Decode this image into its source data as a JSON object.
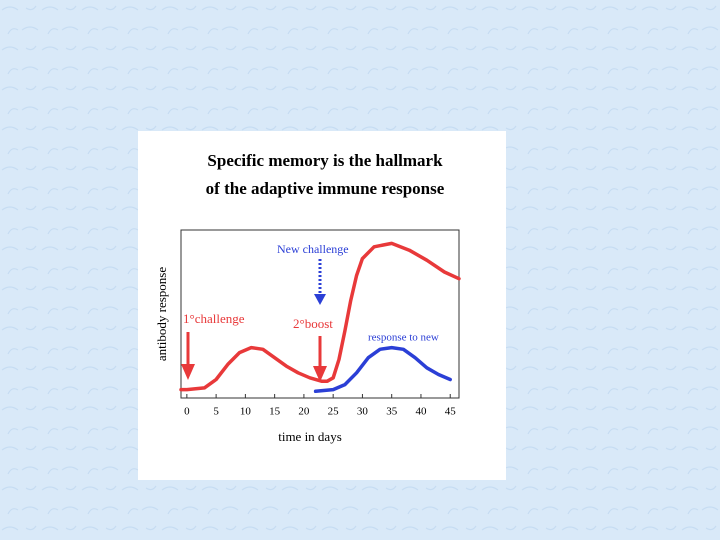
{
  "chart_data": {
    "type": "line",
    "title": [
      "Specific memory is the hallmark",
      "of the adaptive immune response"
    ],
    "xlabel": "time in days",
    "ylabel": "antibody response",
    "xlim": [
      -1,
      46.5
    ],
    "ylim": [
      0,
      100
    ],
    "xticks": [
      0,
      5,
      10,
      15,
      20,
      25,
      30,
      35,
      40,
      45
    ],
    "grid": false,
    "series": [
      {
        "color": "#e8393a",
        "x": [
          -1,
          0,
          3,
          5,
          7,
          9,
          11,
          13,
          15,
          17,
          19,
          21,
          23,
          24,
          25,
          26,
          27,
          28,
          29,
          30,
          32,
          35,
          38,
          41,
          44,
          46.5
        ],
        "values": [
          5,
          5,
          6,
          11,
          20,
          27,
          30,
          29,
          24,
          19,
          15,
          12,
          10,
          10,
          12,
          23,
          40,
          58,
          73,
          83,
          90,
          92,
          88,
          82,
          75,
          71
        ]
      },
      {
        "color": "#2b3fd6",
        "x": [
          22,
          25,
          27,
          29,
          31,
          33,
          35,
          37,
          39,
          41,
          43,
          45
        ],
        "values": [
          4,
          5,
          8,
          15,
          24,
          29,
          30,
          29,
          24,
          18,
          14,
          11
        ]
      }
    ],
    "annotations": [
      "New challenge",
      "1°challenge",
      "2°boost",
      "response to new"
    ]
  }
}
